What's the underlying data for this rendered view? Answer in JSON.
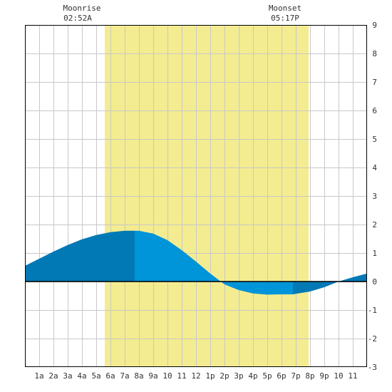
{
  "moon": {
    "rise_label": "Moonrise",
    "rise_time": "02:52A",
    "set_label": "Moonset",
    "set_time": "05:17P"
  },
  "chart_data": {
    "type": "area",
    "x_tick_labels": [
      "1a",
      "2a",
      "3a",
      "4a",
      "5a",
      "6a",
      "7a",
      "8a",
      "9a",
      "10",
      "11",
      "12",
      "1p",
      "2p",
      "3p",
      "4p",
      "5p",
      "6p",
      "7p",
      "8p",
      "9p",
      "10",
      "11"
    ],
    "y_tick_labels": [
      "9",
      "8",
      "7",
      "6",
      "5",
      "4",
      "3",
      "2",
      "1",
      "0",
      "-1",
      "-2",
      "-3"
    ],
    "xlim": [
      0,
      24
    ],
    "ylim": [
      -3,
      9
    ],
    "daylight": {
      "start_hour": 5.6,
      "end_hour": 19.9
    },
    "series": [
      {
        "x": [
          0,
          1,
          2,
          3,
          4,
          5,
          6,
          7,
          7.7,
          8,
          9,
          10,
          11,
          12,
          13,
          14,
          15,
          16,
          17,
          18,
          18.8,
          19,
          20,
          21,
          22,
          23,
          24
        ],
        "values": [
          0.55,
          0.8,
          1.05,
          1.28,
          1.48,
          1.63,
          1.73,
          1.78,
          1.78,
          1.78,
          1.68,
          1.45,
          1.1,
          0.7,
          0.28,
          -0.1,
          -0.3,
          -0.42,
          -0.46,
          -0.45,
          -0.45,
          -0.43,
          -0.35,
          -0.2,
          0.0,
          0.15,
          0.28
        ]
      }
    ],
    "fill_segments": [
      {
        "from": 0,
        "to": 7.7,
        "color": "#0079b5"
      },
      {
        "from": 7.7,
        "to": 18.8,
        "color": "#0094d8"
      },
      {
        "from": 18.8,
        "to": 24,
        "color": "#0079b5"
      }
    ],
    "colors": {
      "daylight": "#f4ec90",
      "grid": "#c8c8c8",
      "zero_line": "#000000"
    },
    "grid": true
  }
}
